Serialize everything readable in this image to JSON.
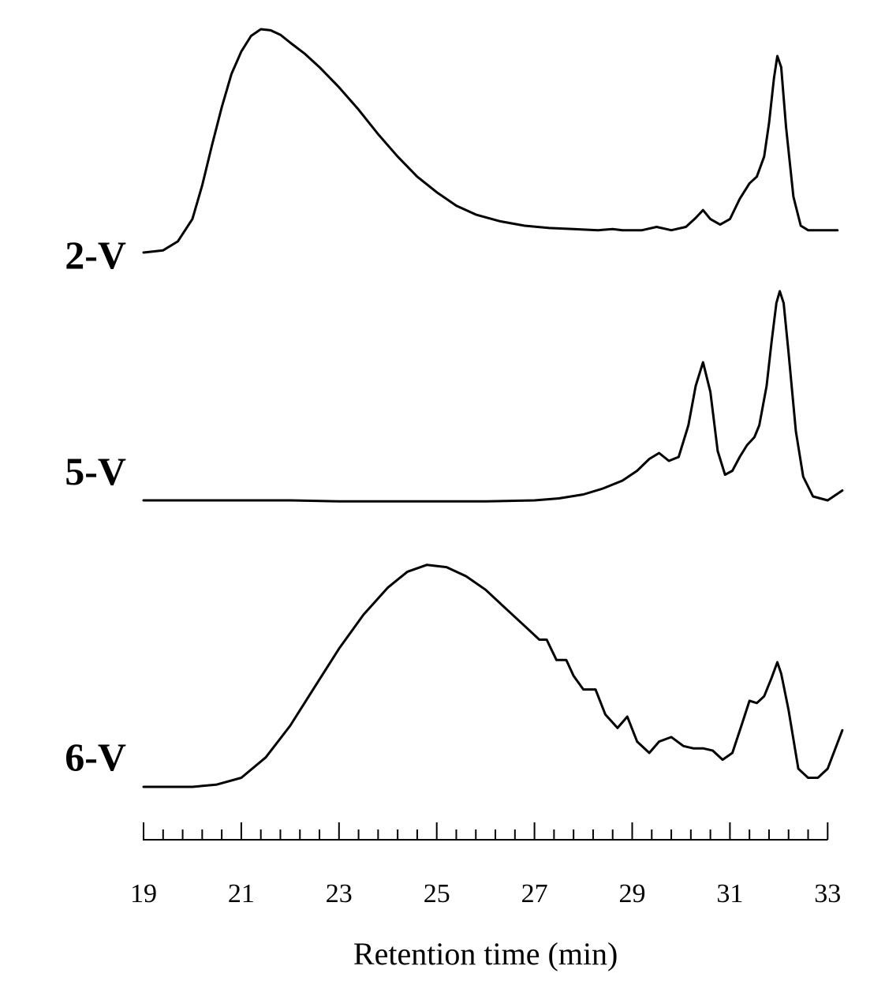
{
  "chart_data": {
    "type": "line",
    "title": "",
    "xlabel": "Retention time (min)",
    "ylabel": "",
    "xlim": [
      19,
      33.3
    ],
    "x_ticks": [
      "19",
      "21",
      "23",
      "25",
      "27",
      "29",
      "31",
      "33"
    ],
    "grid": false,
    "legend": "none",
    "line_color": "#000000",
    "series": [
      {
        "name": "2-V",
        "x": [
          19.0,
          19.4,
          19.7,
          20.0,
          20.2,
          20.4,
          20.6,
          20.8,
          21.0,
          21.2,
          21.4,
          21.6,
          21.8,
          22.0,
          22.3,
          22.6,
          23.0,
          23.4,
          23.8,
          24.2,
          24.6,
          25.0,
          25.4,
          25.8,
          26.3,
          26.8,
          27.3,
          27.8,
          28.3,
          28.6,
          28.8,
          29.0,
          29.2,
          29.5,
          29.8,
          30.1,
          30.3,
          30.45,
          30.6,
          30.8,
          31.0,
          31.2,
          31.4,
          31.55,
          31.7,
          31.8,
          31.9,
          31.97,
          32.05,
          32.15,
          32.3,
          32.45,
          32.6,
          32.8,
          33.0,
          33.2
        ],
        "y": [
          0.0,
          0.01,
          0.05,
          0.15,
          0.3,
          0.48,
          0.65,
          0.8,
          0.9,
          0.97,
          1.0,
          0.995,
          0.975,
          0.94,
          0.89,
          0.83,
          0.74,
          0.64,
          0.53,
          0.43,
          0.34,
          0.27,
          0.21,
          0.17,
          0.14,
          0.12,
          0.11,
          0.105,
          0.1,
          0.105,
          0.1,
          0.1,
          0.1,
          0.115,
          0.1,
          0.115,
          0.155,
          0.19,
          0.15,
          0.125,
          0.15,
          0.24,
          0.31,
          0.34,
          0.43,
          0.58,
          0.78,
          0.88,
          0.83,
          0.56,
          0.25,
          0.12,
          0.1,
          0.1,
          0.1,
          0.1
        ]
      },
      {
        "name": "5-V",
        "x": [
          19.0,
          20.0,
          21.0,
          22.0,
          23.0,
          24.0,
          25.0,
          26.0,
          27.0,
          27.5,
          28.0,
          28.4,
          28.8,
          29.1,
          29.35,
          29.55,
          29.75,
          29.95,
          30.15,
          30.3,
          30.45,
          30.6,
          30.75,
          30.9,
          31.05,
          31.2,
          31.35,
          31.5,
          31.6,
          31.75,
          31.85,
          31.95,
          32.02,
          32.1,
          32.2,
          32.35,
          32.5,
          32.7,
          33.0,
          33.3
        ],
        "y": [
          0.0,
          0.0,
          0.0,
          0.0,
          -0.005,
          -0.005,
          -0.005,
          -0.005,
          0.0,
          0.01,
          0.03,
          0.06,
          0.1,
          0.15,
          0.21,
          0.24,
          0.2,
          0.22,
          0.38,
          0.58,
          0.7,
          0.55,
          0.25,
          0.13,
          0.15,
          0.22,
          0.28,
          0.32,
          0.38,
          0.58,
          0.8,
          1.0,
          1.06,
          1.0,
          0.75,
          0.35,
          0.12,
          0.02,
          0.0,
          0.05
        ]
      },
      {
        "name": "6-V",
        "x": [
          19.0,
          20.0,
          20.5,
          21.0,
          21.5,
          22.0,
          22.5,
          23.0,
          23.5,
          24.0,
          24.4,
          24.8,
          25.2,
          25.6,
          26.0,
          26.4,
          26.8,
          27.1,
          27.25,
          27.45,
          27.65,
          27.8,
          28.0,
          28.25,
          28.45,
          28.7,
          28.9,
          29.1,
          29.35,
          29.55,
          29.8,
          30.05,
          30.25,
          30.45,
          30.65,
          30.85,
          31.05,
          31.25,
          31.4,
          31.55,
          31.7,
          31.85,
          31.97,
          32.05,
          32.2,
          32.4,
          32.6,
          32.8,
          33.0,
          33.3
        ],
        "y": [
          0.0,
          0.0,
          0.01,
          0.04,
          0.13,
          0.27,
          0.44,
          0.61,
          0.76,
          0.88,
          0.95,
          0.98,
          0.97,
          0.93,
          0.87,
          0.79,
          0.71,
          0.65,
          0.65,
          0.56,
          0.56,
          0.49,
          0.43,
          0.43,
          0.32,
          0.26,
          0.31,
          0.2,
          0.15,
          0.2,
          0.22,
          0.18,
          0.17,
          0.17,
          0.16,
          0.12,
          0.15,
          0.28,
          0.38,
          0.37,
          0.4,
          0.48,
          0.55,
          0.5,
          0.34,
          0.08,
          0.04,
          0.04,
          0.08,
          0.25
        ]
      }
    ]
  }
}
